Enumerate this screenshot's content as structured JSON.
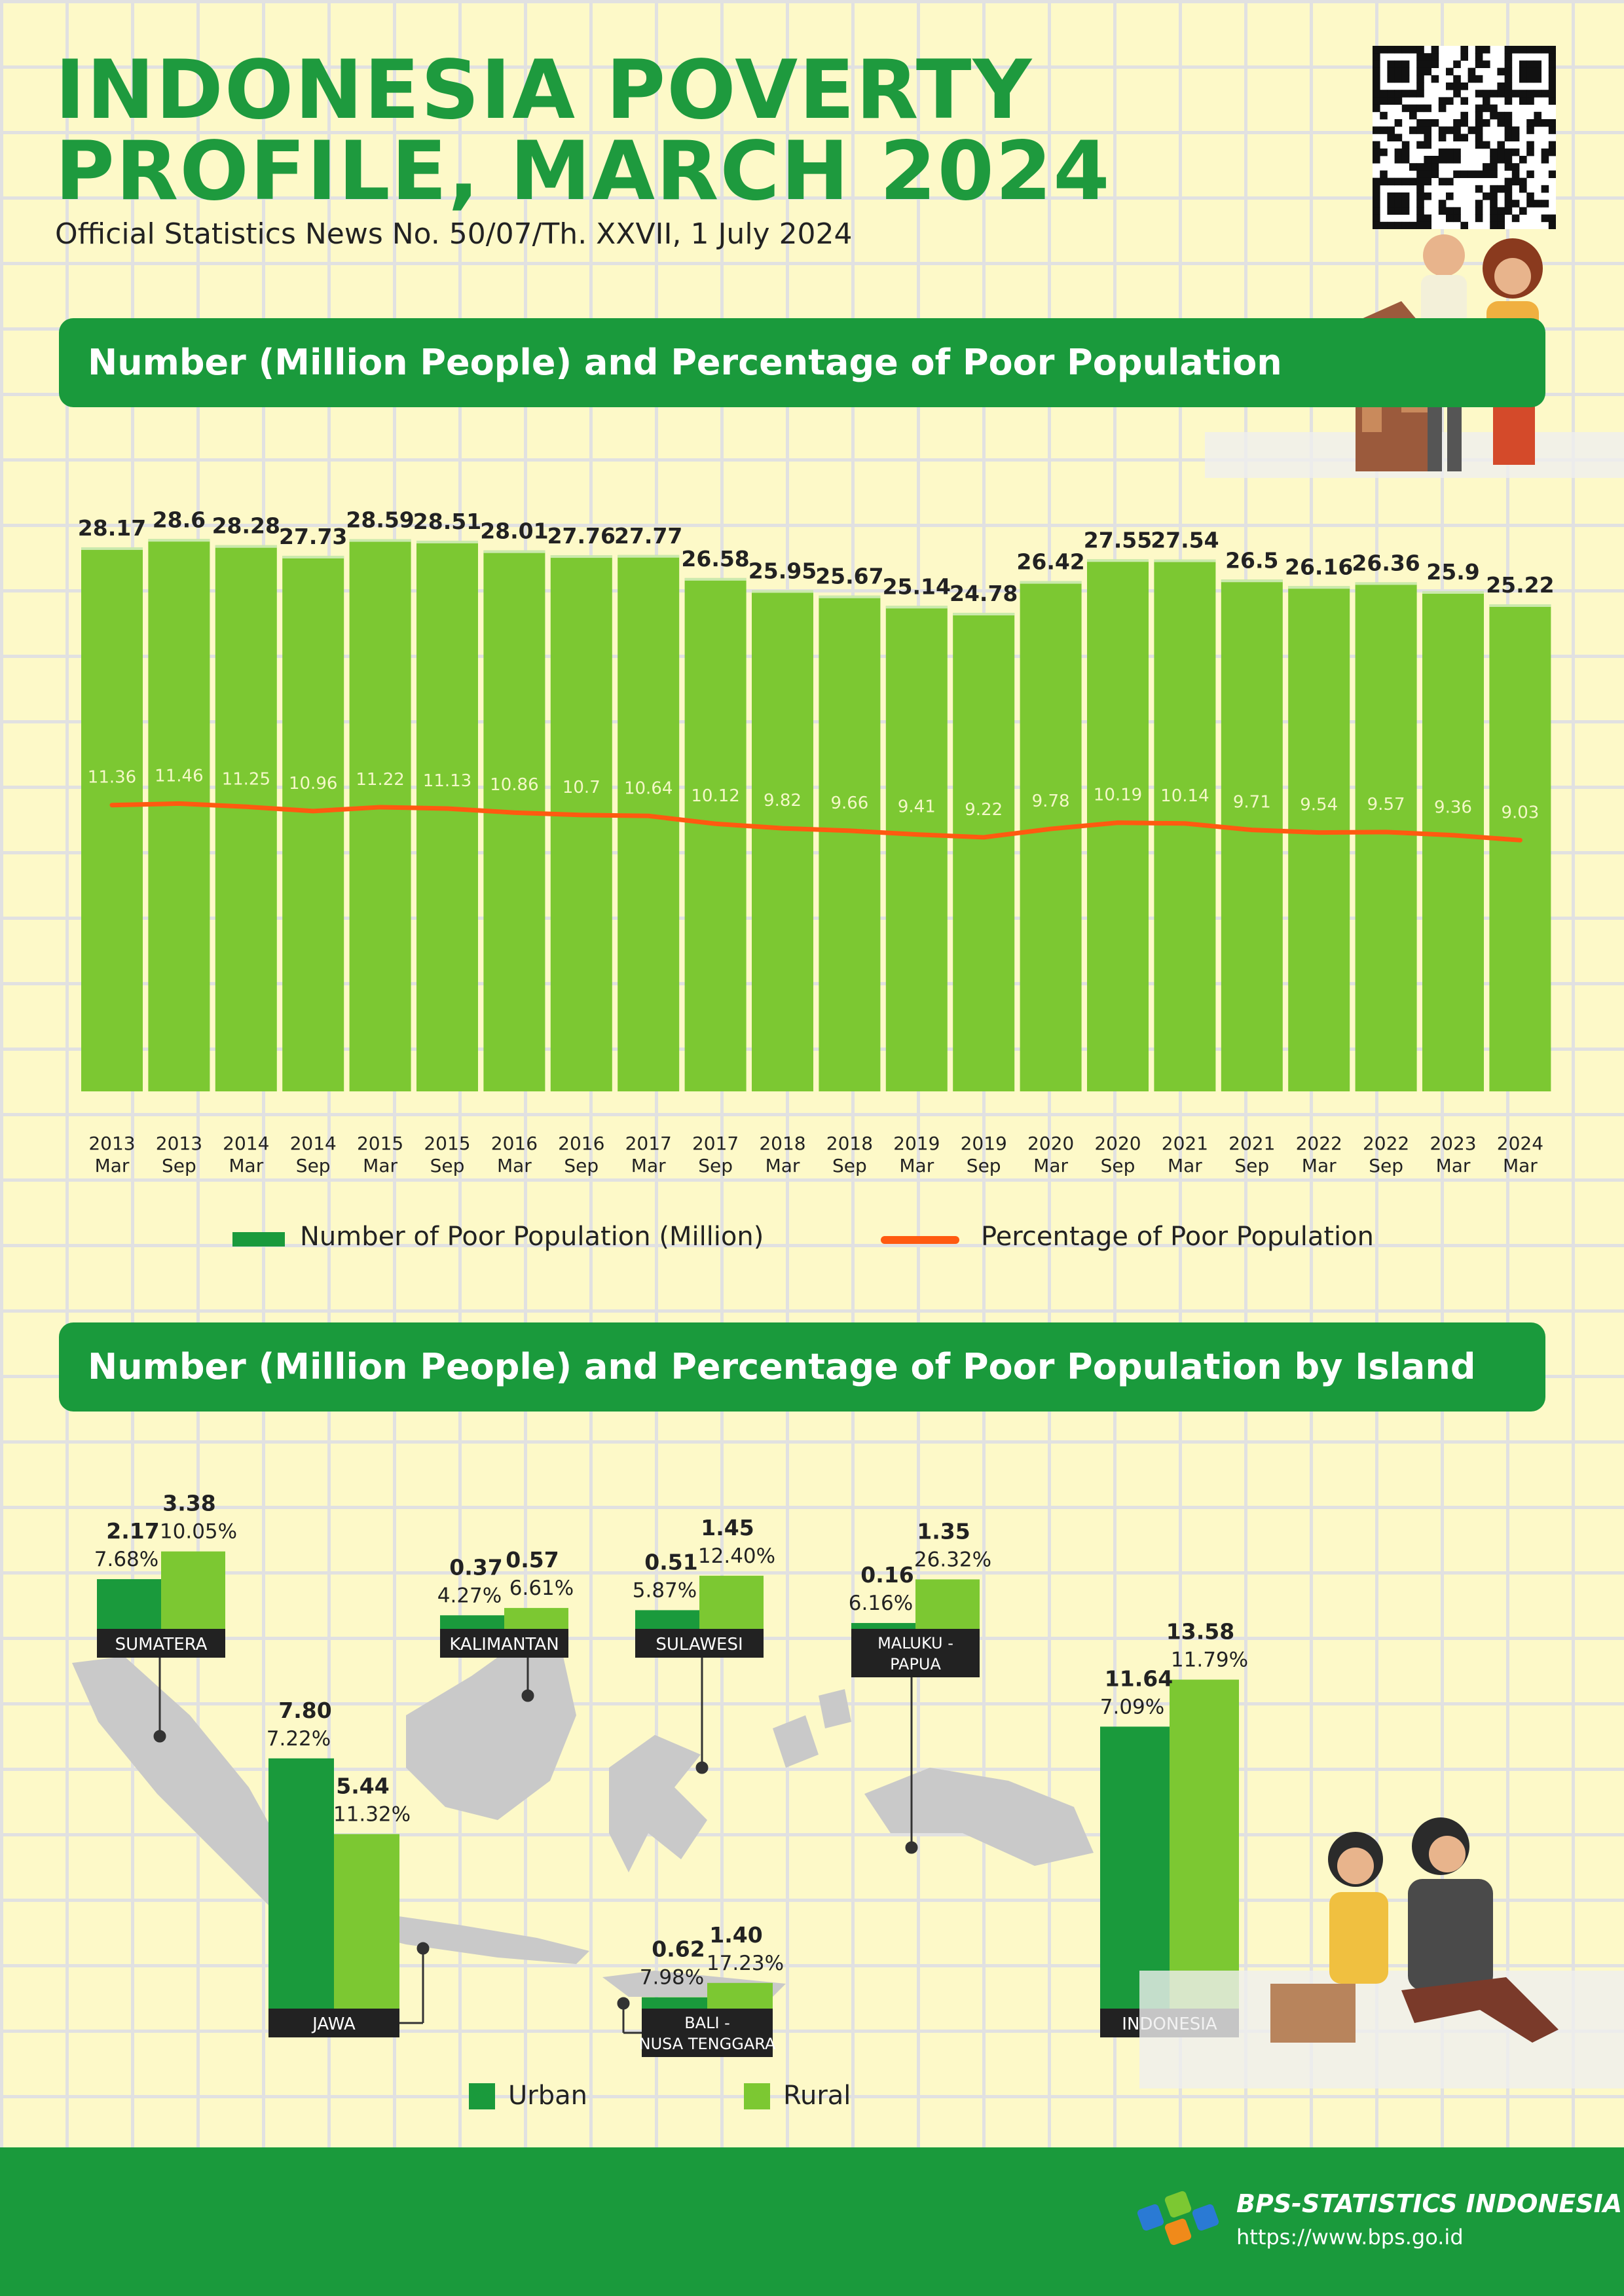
{
  "header": {
    "title_line1": "INDONESIA POVERTY",
    "title_line2": "PROFILE, MARCH 2024",
    "subtitle": "Official Statistics News No. 50/07/Th. XXVII, 1 July 2024"
  },
  "section1_title": "Number (Million People) and Percentage of Poor Population",
  "section2_title": "Number (Million People) and Percentage of Poor Population by Island",
  "legend1": {
    "bar_label": "Number of Poor Population (Million)",
    "line_label": "Percentage of Poor Population"
  },
  "legend2": {
    "urban_label": "Urban",
    "rural_label": "Rural"
  },
  "footer": {
    "org": "BPS-STATISTICS INDONESIA",
    "url": "https://www.bps.go.id"
  },
  "colors": {
    "bar": "#7cc832",
    "line": "#ff5a10",
    "urban": "#1a9a3c",
    "rural": "#7cc832",
    "banner": "#1a9a3c",
    "background": "#fdf9c8",
    "map": "#c9c9c9"
  },
  "chart_data": [
    {
      "type": "bar",
      "categories": [
        [
          "2013",
          "Mar"
        ],
        [
          "2013",
          "Sep"
        ],
        [
          "2014",
          "Mar"
        ],
        [
          "2014",
          "Sep"
        ],
        [
          "2015",
          "Mar"
        ],
        [
          "2015",
          "Sep"
        ],
        [
          "2016",
          "Mar"
        ],
        [
          "2016",
          "Sep"
        ],
        [
          "2017",
          "Mar"
        ],
        [
          "2017",
          "Sep"
        ],
        [
          "2018",
          "Mar"
        ],
        [
          "2018",
          "Sep"
        ],
        [
          "2019",
          "Mar"
        ],
        [
          "2019",
          "Sep"
        ],
        [
          "2020",
          "Mar"
        ],
        [
          "2020",
          "Sep"
        ],
        [
          "2021",
          "Mar"
        ],
        [
          "2021",
          "Sep"
        ],
        [
          "2022",
          "Mar"
        ],
        [
          "2022",
          "Sep"
        ],
        [
          "2023",
          "Mar"
        ],
        [
          "2024",
          "Mar"
        ]
      ],
      "series": [
        {
          "name": "Number of Poor Population (Million)",
          "values": [
            28.17,
            28.6,
            28.28,
            27.73,
            28.59,
            28.51,
            28.01,
            27.76,
            27.77,
            26.58,
            25.95,
            25.67,
            25.14,
            24.78,
            26.42,
            27.55,
            27.54,
            26.5,
            26.16,
            26.36,
            25.9,
            25.22
          ],
          "labels": [
            "28.17",
            "28.6",
            "28.28",
            "27.73",
            "28.59",
            "28.51",
            "28.01",
            "27.76",
            "27.77",
            "26.58",
            "25.95",
            "25.67",
            "25.14",
            "24.78",
            "26.42",
            "27.55",
            "27.54",
            "26.5",
            "26.16",
            "26.36",
            "25.9",
            "25.22"
          ]
        },
        {
          "name": "Percentage of Poor Population",
          "type": "line",
          "values": [
            11.36,
            11.46,
            11.25,
            10.96,
            11.22,
            11.13,
            10.86,
            10.7,
            10.64,
            10.12,
            9.82,
            9.66,
            9.41,
            9.22,
            9.78,
            10.19,
            10.14,
            9.71,
            9.54,
            9.57,
            9.36,
            9.03
          ],
          "labels": [
            "11.36",
            "11.46",
            "11.25",
            "10.96",
            "11.22",
            "11.13",
            "10.86",
            "10.7",
            "10.64",
            "10.12",
            "9.82",
            "9.66",
            "9.41",
            "9.22",
            "9.78",
            "10.19",
            "10.14",
            "9.71",
            "9.54",
            "9.57",
            "9.36",
            "9.03"
          ]
        }
      ],
      "ylim": [
        0,
        30
      ],
      "grid": false,
      "legend": "bottom"
    },
    {
      "type": "bar",
      "groups": [
        {
          "name": "SUMATERA",
          "urban": 2.17,
          "urban_label": "2.17",
          "urban_pct": "7.68%",
          "rural": 3.38,
          "rural_label": "3.38",
          "rural_pct": "10.05%"
        },
        {
          "name": "KALIMANTAN",
          "urban": 0.37,
          "urban_label": "0.37",
          "urban_pct": "4.27%",
          "rural": 0.57,
          "rural_label": "0.57",
          "rural_pct": "6.61%"
        },
        {
          "name": "SULAWESI",
          "urban": 0.51,
          "urban_label": "0.51",
          "urban_pct": "5.87%",
          "rural": 1.45,
          "rural_label": "1.45",
          "rural_pct": "12.40%"
        },
        {
          "name": "MALUKU - PAPUA",
          "urban": 0.16,
          "urban_label": "0.16",
          "urban_pct": "6.16%",
          "rural": 1.35,
          "rural_label": "1.35",
          "rural_pct": "26.32%"
        },
        {
          "name": "JAWA",
          "urban": 7.8,
          "urban_label": "7.80",
          "urban_pct": "7.22%",
          "rural": 5.44,
          "rural_label": "5.44",
          "rural_pct": "11.32%"
        },
        {
          "name": "BALI - NUSA TENGGARA",
          "urban": 0.62,
          "urban_label": "0.62",
          "urban_pct": "7.98%",
          "rural": 1.4,
          "rural_label": "1.40",
          "rural_pct": "17.23%"
        },
        {
          "name": "INDONESIA",
          "urban": 11.64,
          "urban_label": "11.64",
          "urban_pct": "7.09%",
          "rural": 13.58,
          "rural_label": "13.58",
          "rural_pct": "11.79%"
        }
      ],
      "series": [
        {
          "name": "Urban"
        },
        {
          "name": "Rural"
        }
      ],
      "legend": "bottom"
    }
  ]
}
